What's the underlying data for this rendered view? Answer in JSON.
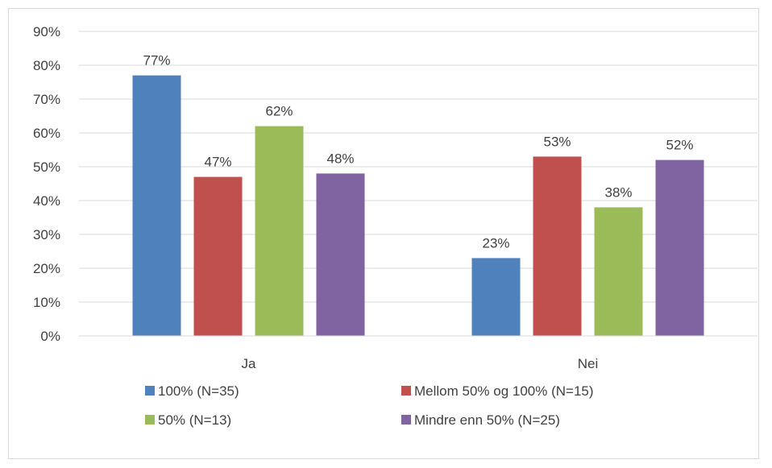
{
  "chart_data": {
    "type": "bar",
    "categories": [
      "Ja",
      "Nei"
    ],
    "series": [
      {
        "name": "100% (N=35)",
        "color": "#4F81BD",
        "values": [
          77,
          23
        ]
      },
      {
        "name": "Mellom 50% og 100% (N=15)",
        "color": "#C0504D",
        "values": [
          47,
          53
        ]
      },
      {
        "name": "50% (N=13)",
        "color": "#9BBB59",
        "values": [
          62,
          38
        ]
      },
      {
        "name": "Mindre enn 50% (N=25)",
        "color": "#8064A2",
        "values": [
          48,
          52
        ]
      }
    ],
    "data_labels": [
      [
        "77%",
        "23%"
      ],
      [
        "47%",
        "53%"
      ],
      [
        "62%",
        "38%"
      ],
      [
        "48%",
        "52%"
      ]
    ],
    "yticks": [
      "0%",
      "10%",
      "20%",
      "30%",
      "40%",
      "50%",
      "60%",
      "70%",
      "80%",
      "90%"
    ],
    "ylim": [
      0,
      90
    ],
    "title": "",
    "xlabel": "",
    "ylabel": "",
    "grid": true,
    "legend_position": "bottom"
  }
}
